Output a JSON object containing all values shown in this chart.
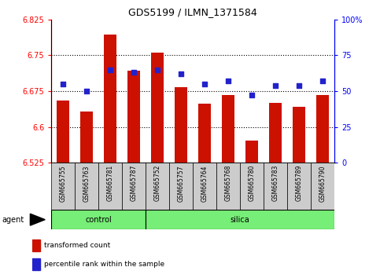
{
  "title": "GDS5199 / ILMN_1371584",
  "samples": [
    "GSM665755",
    "GSM665763",
    "GSM665781",
    "GSM665787",
    "GSM665752",
    "GSM665757",
    "GSM665764",
    "GSM665768",
    "GSM665780",
    "GSM665783",
    "GSM665789",
    "GSM665790"
  ],
  "transformed_counts": [
    6.655,
    6.632,
    6.793,
    6.718,
    6.755,
    6.683,
    6.648,
    6.667,
    6.572,
    6.65,
    6.642,
    6.667
  ],
  "percentile_ranks": [
    55,
    50,
    65,
    63,
    65,
    62,
    55,
    57,
    47,
    54,
    54,
    57
  ],
  "y_min": 6.525,
  "y_max": 6.825,
  "y_ticks": [
    6.525,
    6.6,
    6.675,
    6.75,
    6.825
  ],
  "y2_ticks": [
    0,
    25,
    50,
    75,
    100
  ],
  "bar_color": "#cc1100",
  "dot_color": "#2222cc",
  "control_samples": 4,
  "control_label": "control",
  "silica_label": "silica",
  "agent_label": "agent",
  "legend_bar": "transformed count",
  "legend_dot": "percentile rank within the sample",
  "group_bg": "#77ee77",
  "xlabel_bg": "#cccccc",
  "bar_width": 0.55
}
